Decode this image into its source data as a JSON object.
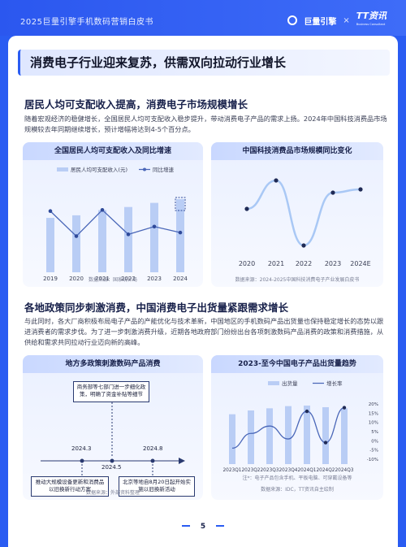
{
  "header": {
    "report_title": "2025巨量引擎手机数码营销白皮书",
    "logo1": "巨量引擎",
    "times": "×",
    "logo2": "TT资讯",
    "logo2_sub": "Business Consultant"
  },
  "main_title": "消费电子行业迎来复苏，供需双向拉动行业增长",
  "section1": {
    "title": "居民人均可支配收入提高，消费电子市场规模增长",
    "text": "随着宏观经济的稳健增长，全国居民人均可支配收入稳步提升，带动消费电子产品的需求上扬。2024年中国科技消费品市场规模较去年同期继续增长，预计增幅将达到4-5个百分点。"
  },
  "section2": {
    "title": "各地政策同步刺激消费，中国消费电子出货量紧跟需求增长",
    "text": "与此同时，各大厂商积极布局电子产品的产能优化与技术革新，中国地区的手机数码产品出货量也保持稳定增长的态势以跟进消费者的需求步伐。为了进一步刺激消费升级，近期各地政府部门纷纷出台各项刺激数码产品消费的政策和消费措施，从供给和需求共同拉动行业迈向新的高峰。"
  },
  "chart_data": [
    {
      "type": "bar",
      "title": "全国居民人均可支配收入及同比增速",
      "categories": [
        "2019",
        "2020",
        "2021",
        "2022",
        "2023",
        "2024"
      ],
      "series": [
        {
          "name": "居民人均可支配收入(元)",
          "type": "bar",
          "values": [
            30733,
            32189,
            35128,
            36883,
            39218,
            41314
          ]
        },
        {
          "name": "同比增速",
          "type": "line",
          "values": [
            8.9,
            4.7,
            9.1,
            5.0,
            6.3,
            5.3
          ]
        }
      ],
      "source": "数据来源：国家统计局"
    },
    {
      "type": "line",
      "title": "中国科技消费品市场规模同比变化",
      "categories": [
        "2020",
        "2021",
        "2022",
        "2023",
        "2024E"
      ],
      "series": [
        {
          "values": [
            1.0,
            4.5,
            -3.5,
            3.0,
            3.4
          ]
        }
      ],
      "source": "数据来源：2024-2025中国科技消费电子产业发展白皮书"
    },
    {
      "type": "bar",
      "title": "2023-至今中国电子产品出货量趋势",
      "categories": [
        "2023Q1",
        "2023Q2",
        "2023Q3",
        "2023Q4",
        "2024Q1",
        "2024Q2",
        "2024Q3"
      ],
      "series": [
        {
          "name": "出货量",
          "type": "bar",
          "values": [
            9.2,
            9.9,
            10.3,
            10.7,
            10.8,
            10.5,
            10.3
          ]
        },
        {
          "name": "增长率",
          "type": "line",
          "values": [
            -4,
            4,
            8,
            1,
            16,
            -1,
            18
          ]
        }
      ],
      "right_ticks": [
        "20%",
        "15%",
        "10%",
        "5%",
        "0%",
        "-5%",
        "-10%"
      ],
      "note": "注*：电子产品包含手机、平板电脑、可穿戴设备等",
      "source": "数据来源：IDC，TT资讯自主绘制"
    }
  ],
  "policy_card": {
    "title": "地方多政策刺激数码产品消费",
    "events": [
      {
        "date": "2024.3",
        "text": "商务部等七部门进一步细化政策，明确了资金或等细节"
      },
      {
        "date": "2024.8",
        "text": "北京等地自8月20日起开始实地以旧换新活动"
      },
      {
        "date": "2024.3",
        "text": "推动大规模设备更新和消费品以旧换新行动方案"
      },
      {
        "date": "2024.8",
        "text": ""
      }
    ],
    "labels": {
      "box_top": "商务部等七部门进一步细化政策，明确了资金补贴等细节",
      "box_bl": "推动大规模设备更新和消费品以旧换新行动方案",
      "box_br": "北京等地自8月20日起开始实施以旧换新活动",
      "d1": "2024.3",
      "d2": "2024.5",
      "d3": "2024.8",
      "d4": "2024.8"
    },
    "source": "数据来源：外部资料整理"
  },
  "footer": {
    "page": "5"
  }
}
